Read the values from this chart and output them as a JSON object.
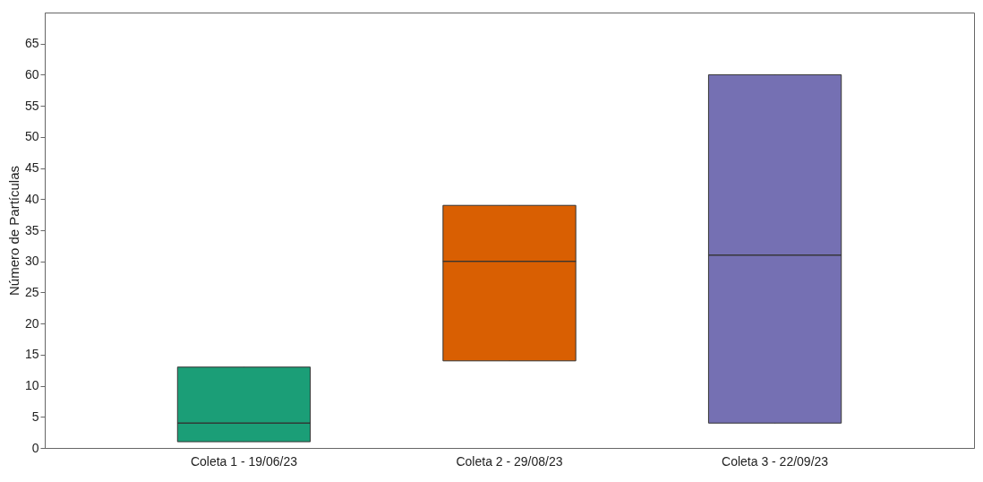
{
  "chart_data": {
    "type": "box",
    "ylabel": "Número de Partículas",
    "categories": [
      "Coleta 1 - 19/06/23",
      "Coleta 2 - 29/08/23",
      "Coleta 3 - 22/09/23"
    ],
    "boxes": [
      {
        "low": 1,
        "q1": 1,
        "median": 4,
        "q3": 13,
        "high": 13
      },
      {
        "low": 14,
        "q1": 14,
        "median": 30,
        "q3": 39,
        "high": 39
      },
      {
        "low": 4,
        "q1": 4,
        "median": 31,
        "q3": 60,
        "high": 60
      }
    ],
    "colors": [
      "#1b9e77",
      "#d95f02",
      "#7570b3"
    ],
    "ylim": [
      0,
      70
    ],
    "yticks": [
      0,
      5,
      10,
      15,
      20,
      25,
      30,
      35,
      40,
      45,
      50,
      55,
      60,
      65
    ]
  }
}
